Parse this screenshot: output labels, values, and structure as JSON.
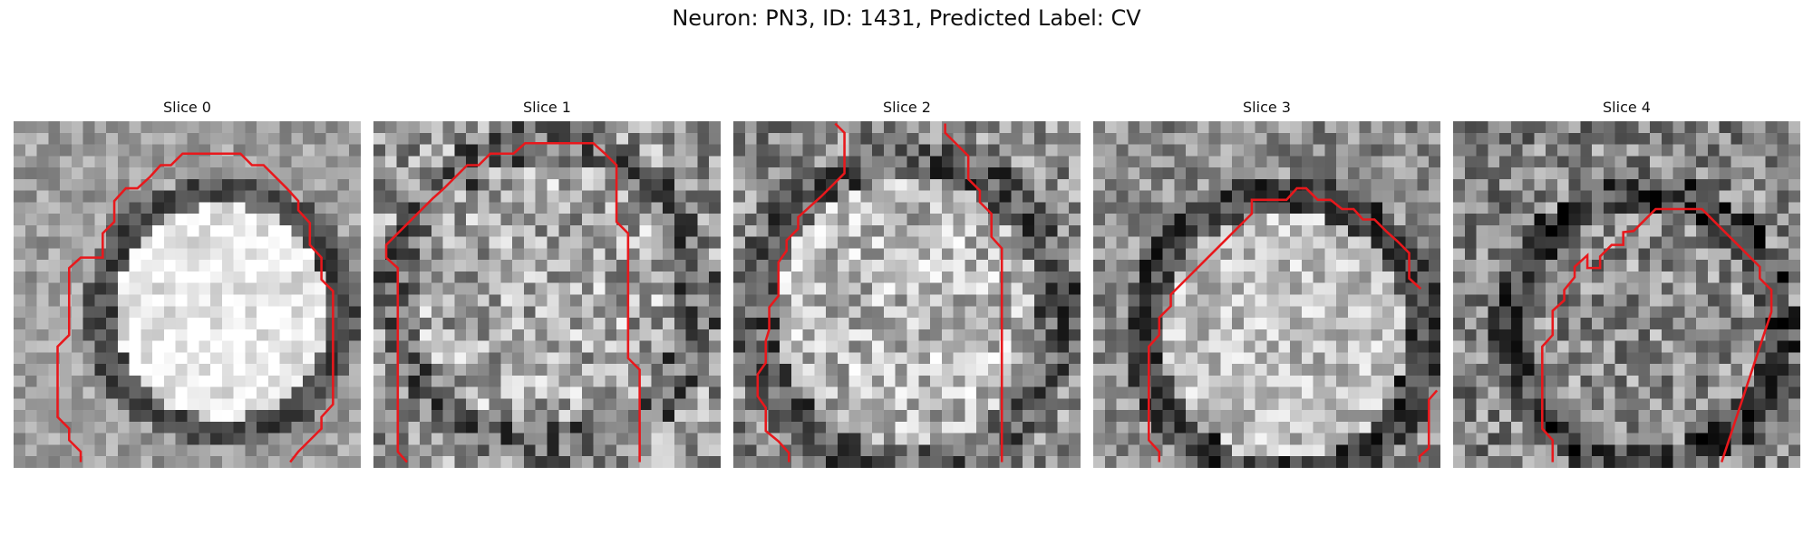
{
  "figure": {
    "title": "Neuron: PN3, ID: 1431, Predicted Label: CV"
  },
  "panels": [
    {
      "title": "Slice 0",
      "seed": 11,
      "base": 0.62,
      "center": [
        0.6,
        0.55
      ],
      "radius": 0.36,
      "inner": 0.92,
      "edge": 0.3,
      "noise": 0.16,
      "contour_color": "#e8181c"
    },
    {
      "title": "Slice 1",
      "seed": 23,
      "base": 0.6,
      "center": [
        0.5,
        0.5
      ],
      "radius": 0.45,
      "inner": 0.66,
      "edge": 0.4,
      "noise": 0.3,
      "contour_color": "#e8181c"
    },
    {
      "title": "Slice 2",
      "seed": 37,
      "base": 0.55,
      "center": [
        0.5,
        0.55
      ],
      "radius": 0.45,
      "inner": 0.72,
      "edge": 0.35,
      "noise": 0.28,
      "contour_color": "#e8181c"
    },
    {
      "title": "Slice 3",
      "seed": 41,
      "base": 0.55,
      "center": [
        0.55,
        0.62
      ],
      "radius": 0.42,
      "inner": 0.74,
      "edge": 0.25,
      "noise": 0.22,
      "contour_color": "#e8181c"
    },
    {
      "title": "Slice 4",
      "seed": 53,
      "base": 0.52,
      "center": [
        0.55,
        0.6
      ],
      "radius": 0.4,
      "inner": 0.55,
      "edge": 0.25,
      "noise": 0.28,
      "contour_color": "#e8181c"
    }
  ]
}
